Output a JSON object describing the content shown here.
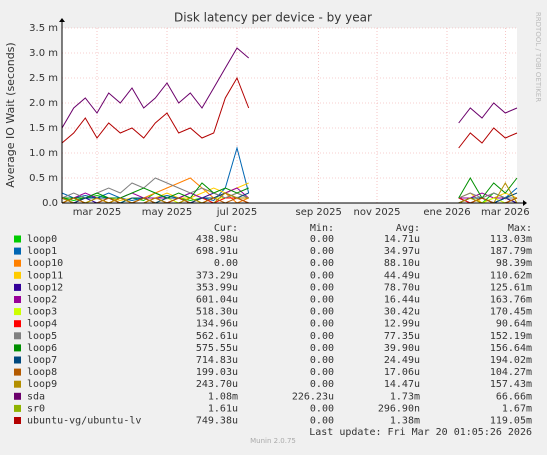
{
  "chart_data": {
    "type": "line",
    "title": "Disk latency per device - by year",
    "ylabel": "Average IO Wait (seconds)",
    "watermark": "RRDTOOL / TOBI OETIKER",
    "footer": "Munin 2.0.75",
    "last_update": "Last update: Fri Mar 20 01:05:26 2026",
    "columns": [
      "Cur:",
      "Min:",
      "Avg:",
      "Max:"
    ],
    "ylim": [
      0,
      0.0035
    ],
    "yticks": [
      {
        "value": 0,
        "label": "0.0"
      },
      {
        "value": 0.0005,
        "label": "0.5 m"
      },
      {
        "value": 0.001,
        "label": "1.0 m"
      },
      {
        "value": 0.0015,
        "label": "1.5 m"
      },
      {
        "value": 0.002,
        "label": "2.0 m"
      },
      {
        "value": 0.0025,
        "label": "2.5 m"
      },
      {
        "value": 0.003,
        "label": "3.0 m"
      },
      {
        "value": 0.0035,
        "label": "3.5 m"
      }
    ],
    "grid": true,
    "categories": [
      null,
      null,
      null,
      "mar 2025",
      null,
      null,
      null,
      null,
      null,
      "may 2025",
      null,
      null,
      null,
      null,
      null,
      "jul 2025",
      null,
      null,
      null,
      null,
      null,
      null,
      "sep 2025",
      null,
      null,
      null,
      null,
      "nov 2025",
      null,
      null,
      null,
      null,
      null,
      "ene 2026",
      null,
      null,
      null,
      null,
      "mar 2026",
      null
    ],
    "series": [
      {
        "name": "loop0",
        "color": "#00cc00",
        "cur": "438.98u",
        "min": "0.00",
        "avg": "14.71u",
        "max": "113.03m",
        "values": [
          0.0001,
          5e-05,
          0.0001,
          0.00015,
          0.0001,
          0,
          0.0001,
          5e-05,
          0.0002,
          0.0001,
          0.0001,
          5e-05,
          0.0001,
          0.0001,
          0.0002,
          0.0001,
          0.0001,
          null,
          null,
          null,
          null,
          null,
          null,
          null,
          null,
          null,
          null,
          null,
          null,
          null,
          null,
          null,
          null,
          null,
          0,
          0.0001,
          0,
          0.0002,
          0.0001,
          0
        ]
      },
      {
        "name": "loop1",
        "color": "#0066b3",
        "cur": "698.91u",
        "min": "0.00",
        "avg": "34.97u",
        "max": "187.79m",
        "values": [
          0.0002,
          0.0001,
          0.00015,
          0.0001,
          0.0002,
          0.0001,
          5e-05,
          0.0001,
          0.0001,
          0.00015,
          0.0001,
          0.0002,
          0.0001,
          5e-05,
          0.0003,
          0.0011,
          0.0002,
          null,
          null,
          null,
          null,
          null,
          null,
          null,
          null,
          null,
          null,
          null,
          null,
          null,
          null,
          null,
          null,
          null,
          0.0001,
          0,
          0.0001,
          0,
          0.0001,
          0.0003
        ]
      },
      {
        "name": "loop10",
        "color": "#ff8000",
        "cur": "0.00",
        "min": "0.00",
        "avg": "88.10u",
        "max": "98.39m",
        "values": [
          0,
          0,
          0,
          0,
          0.0001,
          0,
          0,
          0.0001,
          0.0002,
          0.0003,
          0.0004,
          0.0005,
          0.0003,
          0.0001,
          0.0002,
          0,
          0.0001,
          null,
          null,
          null,
          null,
          null,
          null,
          null,
          null,
          null,
          null,
          null,
          null,
          null,
          null,
          null,
          null,
          null,
          0,
          0,
          0,
          0,
          0,
          0
        ]
      },
      {
        "name": "loop11",
        "color": "#ffcc00",
        "cur": "373.29u",
        "min": "0.00",
        "avg": "44.49u",
        "max": "110.62m",
        "values": [
          0.0001,
          0.0001,
          0,
          0.0001,
          0.0001,
          5e-05,
          0.0001,
          0.0001,
          0.0001,
          0.0002,
          0.0001,
          0.0001,
          0.0002,
          0.0003,
          0.0002,
          0.0003,
          0.0004,
          null,
          null,
          null,
          null,
          null,
          null,
          null,
          null,
          null,
          null,
          null,
          null,
          null,
          null,
          null,
          null,
          null,
          0.0001,
          0.0002,
          0,
          0.0001,
          0.0002,
          0.0001
        ]
      },
      {
        "name": "loop12",
        "color": "#330099",
        "cur": "353.99u",
        "min": "0.00",
        "avg": "78.70u",
        "max": "125.61m",
        "values": [
          0.0001,
          0,
          0.0001,
          0,
          0.0001,
          0.0001,
          0,
          0.0001,
          0.0001,
          0,
          0.0001,
          0,
          0.0001,
          0.0002,
          0.0001,
          0.0002,
          0.0001,
          null,
          null,
          null,
          null,
          null,
          null,
          null,
          null,
          null,
          null,
          null,
          null,
          null,
          null,
          null,
          null,
          null,
          0,
          0.0001,
          0.0001,
          0,
          0.0001,
          0
        ]
      },
      {
        "name": "loop2",
        "color": "#990099",
        "cur": "601.04u",
        "min": "0.00",
        "avg": "16.44u",
        "max": "163.76m",
        "values": [
          0.0001,
          0.0001,
          0.0002,
          0.0001,
          0.0001,
          0.0001,
          0.0002,
          0.0001,
          0.0001,
          0.0001,
          0.0001,
          0.0002,
          0.0001,
          0.0001,
          0.0002,
          0.0003,
          0.0001,
          null,
          null,
          null,
          null,
          null,
          null,
          null,
          null,
          null,
          null,
          null,
          null,
          null,
          null,
          null,
          null,
          null,
          0.0001,
          0.0001,
          0.0002,
          0.0001,
          0.0001,
          0.0001
        ]
      },
      {
        "name": "loop3",
        "color": "#ccff00",
        "cur": "518.30u",
        "min": "0.00",
        "avg": "30.42u",
        "max": "170.45m",
        "values": [
          0,
          0.0001,
          0,
          0.0001,
          0,
          0.0001,
          0,
          0.0001,
          0,
          0.0001,
          0,
          0.0001,
          0,
          0.0001,
          0.0001,
          0.0002,
          0.0001,
          null,
          null,
          null,
          null,
          null,
          null,
          null,
          null,
          null,
          null,
          null,
          null,
          null,
          null,
          null,
          null,
          null,
          0,
          0.0001,
          0,
          0.0001,
          0,
          0.0001
        ]
      },
      {
        "name": "loop4",
        "color": "#ff0000",
        "cur": "134.96u",
        "min": "0.00",
        "avg": "12.99u",
        "max": "90.64m",
        "values": [
          0.0001,
          0,
          0.0001,
          0.0001,
          0,
          0.0001,
          0,
          0,
          0.0001,
          0,
          0.0001,
          0,
          0.0001,
          0,
          0.0001,
          0.0001,
          0,
          null,
          null,
          null,
          null,
          null,
          null,
          null,
          null,
          null,
          null,
          null,
          null,
          null,
          null,
          null,
          null,
          null,
          0.0001,
          0,
          0.0001,
          0,
          0,
          0.0001
        ]
      },
      {
        "name": "loop5",
        "color": "#808080",
        "cur": "562.61u",
        "min": "0.00",
        "avg": "77.35u",
        "max": "152.19m",
        "values": [
          0.0001,
          0.0002,
          0.0001,
          0.0002,
          0.0003,
          0.0002,
          0.0004,
          0.0003,
          0.0005,
          0.0004,
          0.0003,
          0.0002,
          0.0003,
          0.0002,
          0.0001,
          0.0002,
          0.0001,
          null,
          null,
          null,
          null,
          null,
          null,
          null,
          null,
          null,
          null,
          null,
          null,
          null,
          null,
          null,
          null,
          null,
          0.0001,
          0.0002,
          0.0001,
          0.0002,
          0.0001,
          0.0001
        ]
      },
      {
        "name": "loop6",
        "color": "#008f00",
        "cur": "575.55u",
        "min": "0.00",
        "avg": "39.90u",
        "max": "156.64m",
        "values": [
          0.0001,
          0.0001,
          0.0001,
          0.0002,
          0.0001,
          0.0001,
          0.0002,
          0.0003,
          0.0002,
          0.0001,
          0.0002,
          0.0001,
          0.0004,
          0.0002,
          0.0003,
          0.0002,
          0.0003,
          null,
          null,
          null,
          null,
          null,
          null,
          null,
          null,
          null,
          null,
          null,
          null,
          null,
          null,
          null,
          null,
          null,
          0.0001,
          0.0005,
          0.0001,
          0.0004,
          0.0002,
          0.0005
        ]
      },
      {
        "name": "loop7",
        "color": "#00487d",
        "cur": "714.83u",
        "min": "0.00",
        "avg": "24.49u",
        "max": "194.02m",
        "values": [
          0.0001,
          0,
          0.0001,
          0.0001,
          0.0001,
          0,
          0.0001,
          0.0001,
          0,
          0.0001,
          0.0001,
          0,
          0.0001,
          0.0001,
          0.0002,
          0.0001,
          0.0002,
          null,
          null,
          null,
          null,
          null,
          null,
          null,
          null,
          null,
          null,
          null,
          null,
          null,
          null,
          null,
          null,
          null,
          0,
          0.0001,
          0.0001,
          0,
          0.0001,
          0.0002
        ]
      },
      {
        "name": "loop8",
        "color": "#b35a00",
        "cur": "199.03u",
        "min": "0.00",
        "avg": "17.06u",
        "max": "104.27m",
        "values": [
          0,
          0.0001,
          0,
          0,
          0.0001,
          0,
          0,
          0.0001,
          0,
          0,
          0.0001,
          0,
          0,
          0.0001,
          0,
          0.0001,
          0,
          null,
          null,
          null,
          null,
          null,
          null,
          null,
          null,
          null,
          null,
          null,
          null,
          null,
          null,
          null,
          null,
          null,
          0,
          0,
          0.0001,
          0,
          0,
          0.0001
        ]
      },
      {
        "name": "loop9",
        "color": "#b38f00",
        "cur": "243.70u",
        "min": "0.00",
        "avg": "14.47u",
        "max": "157.43m",
        "values": [
          0.0001,
          0,
          0,
          0.0001,
          0,
          0.0001,
          0,
          0,
          0.0001,
          0,
          0,
          0.0001,
          0,
          0,
          0.0002,
          0.0001,
          0.0001,
          null,
          null,
          null,
          null,
          null,
          null,
          null,
          null,
          null,
          null,
          null,
          null,
          null,
          null,
          null,
          null,
          null,
          0,
          0.0001,
          0,
          0,
          0.0004,
          0
        ]
      },
      {
        "name": "sda",
        "color": "#6b006b",
        "cur": "1.08m",
        "min": "226.23u",
        "avg": "1.73m",
        "max": "66.66m",
        "values": [
          0.0015,
          0.0019,
          0.0021,
          0.0018,
          0.0022,
          0.002,
          0.0023,
          0.0019,
          0.0021,
          0.0024,
          0.002,
          0.0022,
          0.0019,
          0.0023,
          0.0027,
          0.0031,
          0.0029,
          null,
          null,
          null,
          null,
          null,
          null,
          null,
          null,
          null,
          null,
          null,
          null,
          null,
          null,
          null,
          null,
          null,
          0.0016,
          0.0019,
          0.0017,
          0.002,
          0.0018,
          0.0019
        ]
      },
      {
        "name": "sr0",
        "color": "#8fb300",
        "cur": "1.61u",
        "min": "0.00",
        "avg": "296.90n",
        "max": "1.67m",
        "values": [
          0,
          0,
          0,
          0,
          0,
          0,
          0,
          0,
          0,
          0,
          0,
          0,
          0,
          0,
          0,
          0,
          0,
          null,
          null,
          null,
          null,
          null,
          null,
          null,
          null,
          null,
          null,
          null,
          null,
          null,
          null,
          null,
          null,
          null,
          0,
          0,
          0,
          0,
          0,
          0
        ]
      },
      {
        "name": "ubuntu-vg/ubuntu-lv",
        "color": "#b30000",
        "cur": "749.38u",
        "min": "0.00",
        "avg": "1.38m",
        "max": "119.05m",
        "values": [
          0.0012,
          0.0014,
          0.0017,
          0.0013,
          0.0016,
          0.0014,
          0.0015,
          0.0013,
          0.0016,
          0.0018,
          0.0014,
          0.0015,
          0.0013,
          0.0014,
          0.0021,
          0.0025,
          0.0019,
          null,
          null,
          null,
          null,
          null,
          null,
          null,
          null,
          null,
          null,
          null,
          null,
          null,
          null,
          null,
          null,
          null,
          0.0011,
          0.0014,
          0.0012,
          0.0015,
          0.0013,
          0.0014
        ]
      }
    ]
  }
}
